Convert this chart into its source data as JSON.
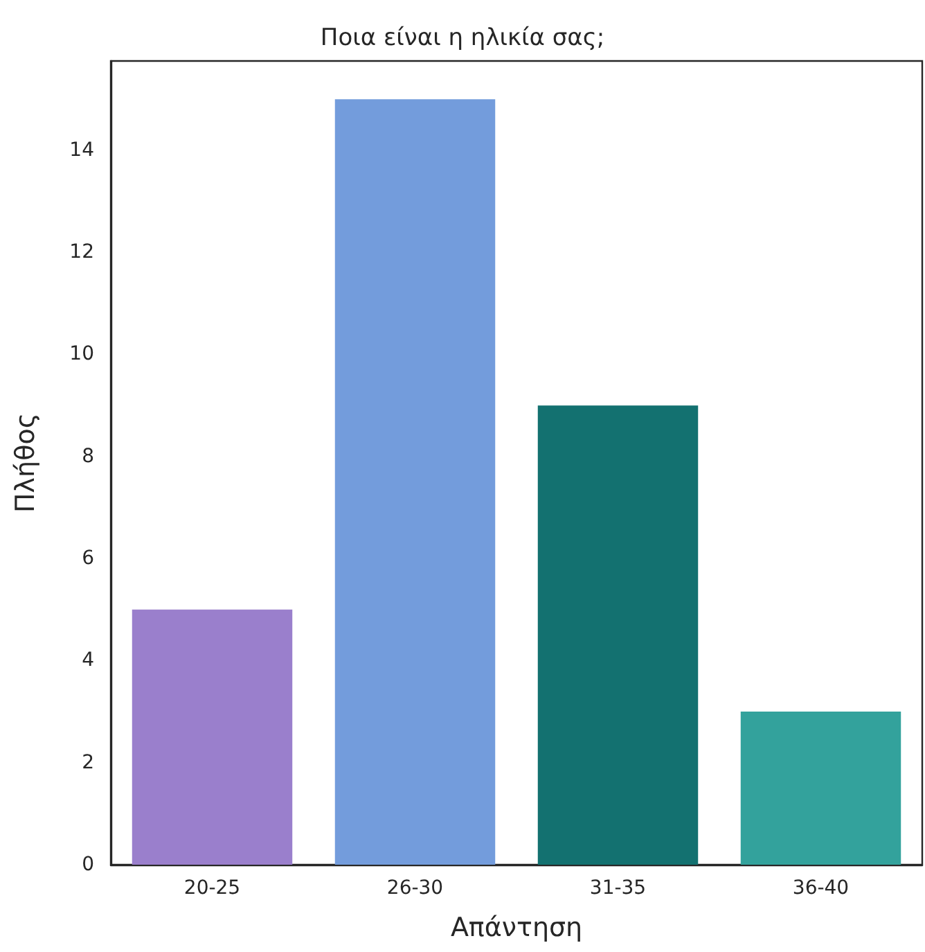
{
  "chart_data": {
    "type": "bar",
    "title": "Ποια είναι η ηλικία σας;",
    "xlabel": "Απάντηση",
    "ylabel": "Πλήθος",
    "categories": [
      "20-25",
      "26-30",
      "31-35",
      "36-40"
    ],
    "values": [
      5,
      15,
      9,
      3
    ],
    "colors": [
      "#9a7fcc",
      "#739cdc",
      "#137170",
      "#33a29c"
    ],
    "ylim": [
      0,
      15.75
    ],
    "yticks": [
      0,
      2,
      4,
      6,
      8,
      10,
      12,
      14
    ],
    "grid": false
  }
}
